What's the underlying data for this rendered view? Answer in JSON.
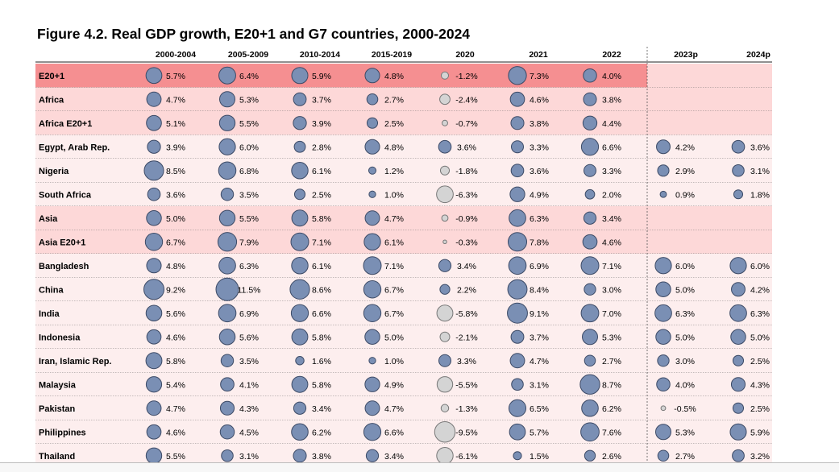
{
  "title": "Figure 4.2. Real GDP growth, E20+1 and G7 countries, 2000-2024",
  "colors": {
    "positive_bubble": "#7a8fb4",
    "negative_bubble": "#d4d4d4",
    "bubble_stroke": "#3c4a66",
    "row_aggregate_top": "#f58f91",
    "row_aggregate": "#fdd8d8",
    "row_country": "#fdeeee"
  },
  "chart_data": {
    "type": "table",
    "unit": "%",
    "columns": [
      "2000-2004",
      "2005-2009",
      "2010-2014",
      "2015-2019",
      "2020",
      "2021",
      "2022",
      "2023p",
      "2024p"
    ],
    "rows": [
      {
        "label": "E20+1",
        "kind": "aggregate_top",
        "values": [
          5.7,
          6.4,
          5.9,
          4.8,
          -1.2,
          7.3,
          4.0,
          null,
          null
        ],
        "display": [
          "5.7%",
          "6.4%",
          "5.9%",
          "4.8%",
          "-1.2%",
          "7.3%",
          "4.0%",
          "",
          ""
        ]
      },
      {
        "label": "Africa",
        "kind": "aggregate",
        "values": [
          4.7,
          5.3,
          3.7,
          2.7,
          -2.4,
          4.6,
          3.8,
          null,
          null
        ],
        "display": [
          "4.7%",
          "5.3%",
          "3.7%",
          "2.7%",
          "-2.4%",
          "4.6%",
          "3.8%",
          "",
          ""
        ]
      },
      {
        "label": "Africa E20+1",
        "kind": "aggregate",
        "values": [
          5.1,
          5.5,
          3.9,
          2.5,
          -0.7,
          3.8,
          4.4,
          null,
          null
        ],
        "display": [
          "5.1%",
          "5.5%",
          "3.9%",
          "2.5%",
          "-0.7%",
          "3.8%",
          "4.4%",
          "",
          ""
        ]
      },
      {
        "label": "Egypt, Arab Rep.",
        "kind": "country",
        "values": [
          3.9,
          6.0,
          2.8,
          4.8,
          3.6,
          3.3,
          6.6,
          4.2,
          3.6
        ],
        "display": [
          "3.9%",
          "6.0%",
          "2.8%",
          "4.8%",
          "3.6%",
          "3.3%",
          "6.6%",
          "4.2%",
          "3.6%"
        ]
      },
      {
        "label": "Nigeria",
        "kind": "country",
        "values": [
          8.5,
          6.8,
          6.1,
          1.2,
          -1.8,
          3.6,
          3.3,
          2.9,
          3.1
        ],
        "display": [
          "8.5%",
          "6.8%",
          "6.1%",
          "1.2%",
          "-1.8%",
          "3.6%",
          "3.3%",
          "2.9%",
          "3.1%"
        ]
      },
      {
        "label": "South Africa",
        "kind": "country",
        "values": [
          3.6,
          3.5,
          2.5,
          1.0,
          -6.3,
          4.9,
          2.0,
          0.9,
          1.8
        ],
        "display": [
          "3.6%",
          "3.5%",
          "2.5%",
          "1.0%",
          "-6.3%",
          "4.9%",
          "2.0%",
          "0.9%",
          "1.8%"
        ]
      },
      {
        "label": "Asia",
        "kind": "aggregate",
        "values": [
          5.0,
          5.5,
          5.8,
          4.7,
          -0.9,
          6.3,
          3.4,
          null,
          null
        ],
        "display": [
          "5.0%",
          "5.5%",
          "5.8%",
          "4.7%",
          "-0.9%",
          "6.3%",
          "3.4%",
          "",
          ""
        ]
      },
      {
        "label": "Asia E20+1",
        "kind": "aggregate",
        "values": [
          6.7,
          7.9,
          7.1,
          6.1,
          -0.3,
          7.8,
          4.6,
          null,
          null
        ],
        "display": [
          "6.7%",
          "7.9%",
          "7.1%",
          "6.1%",
          "-0.3%",
          "7.8%",
          "4.6%",
          "",
          ""
        ]
      },
      {
        "label": "Bangladesh",
        "kind": "country",
        "values": [
          4.8,
          6.3,
          6.1,
          7.1,
          3.4,
          6.9,
          7.1,
          6.0,
          6.0
        ],
        "display": [
          "4.8%",
          "6.3%",
          "6.1%",
          "7.1%",
          "3.4%",
          "6.9%",
          "7.1%",
          "6.0%",
          "6.0%"
        ]
      },
      {
        "label": "China",
        "kind": "country",
        "values": [
          9.2,
          11.5,
          8.6,
          6.7,
          2.2,
          8.4,
          3.0,
          5.0,
          4.2
        ],
        "display": [
          "9.2%",
          "11.5%",
          "8.6%",
          "6.7%",
          "2.2%",
          "8.4%",
          "3.0%",
          "5.0%",
          "4.2%"
        ]
      },
      {
        "label": "India",
        "kind": "country",
        "values": [
          5.6,
          6.9,
          6.6,
          6.7,
          -5.8,
          9.1,
          7.0,
          6.3,
          6.3
        ],
        "display": [
          "5.6%",
          "6.9%",
          "6.6%",
          "6.7%",
          "-5.8%",
          "9.1%",
          "7.0%",
          "6.3%",
          "6.3%"
        ]
      },
      {
        "label": "Indonesia",
        "kind": "country",
        "values": [
          4.6,
          5.6,
          5.8,
          5.0,
          -2.1,
          3.7,
          5.3,
          5.0,
          5.0
        ],
        "display": [
          "4.6%",
          "5.6%",
          "5.8%",
          "5.0%",
          "-2.1%",
          "3.7%",
          "5.3%",
          "5.0%",
          "5.0%"
        ]
      },
      {
        "label": "Iran, Islamic Rep.",
        "kind": "country",
        "values": [
          5.8,
          3.5,
          1.6,
          1.0,
          3.3,
          4.7,
          2.7,
          3.0,
          2.5
        ],
        "display": [
          "5.8%",
          "3.5%",
          "1.6%",
          "1.0%",
          "3.3%",
          "4.7%",
          "2.7%",
          "3.0%",
          "2.5%"
        ]
      },
      {
        "label": "Malaysia",
        "kind": "country",
        "values": [
          5.4,
          4.1,
          5.8,
          4.9,
          -5.5,
          3.1,
          8.7,
          4.0,
          4.3
        ],
        "display": [
          "5.4%",
          "4.1%",
          "5.8%",
          "4.9%",
          "-5.5%",
          "3.1%",
          "8.7%",
          "4.0%",
          "4.3%"
        ]
      },
      {
        "label": "Pakistan",
        "kind": "country",
        "values": [
          4.7,
          4.3,
          3.4,
          4.7,
          -1.3,
          6.5,
          6.2,
          -0.5,
          2.5
        ],
        "display": [
          "4.7%",
          "4.3%",
          "3.4%",
          "4.7%",
          "-1.3%",
          "6.5%",
          "6.2%",
          "-0.5%",
          "2.5%"
        ]
      },
      {
        "label": "Philippines",
        "kind": "country",
        "values": [
          4.6,
          4.5,
          6.2,
          6.6,
          -9.5,
          5.7,
          7.6,
          5.3,
          5.9
        ],
        "display": [
          "4.6%",
          "4.5%",
          "6.2%",
          "6.6%",
          "-9.5%",
          "5.7%",
          "7.6%",
          "5.3%",
          "5.9%"
        ]
      },
      {
        "label": "Thailand",
        "kind": "country",
        "values": [
          5.5,
          3.1,
          3.8,
          3.4,
          -6.1,
          1.5,
          2.6,
          2.7,
          3.2
        ],
        "display": [
          "5.5%",
          "3.1%",
          "3.8%",
          "3.4%",
          "-6.1%",
          "1.5%",
          "2.6%",
          "2.7%",
          "3.2%"
        ]
      }
    ]
  }
}
